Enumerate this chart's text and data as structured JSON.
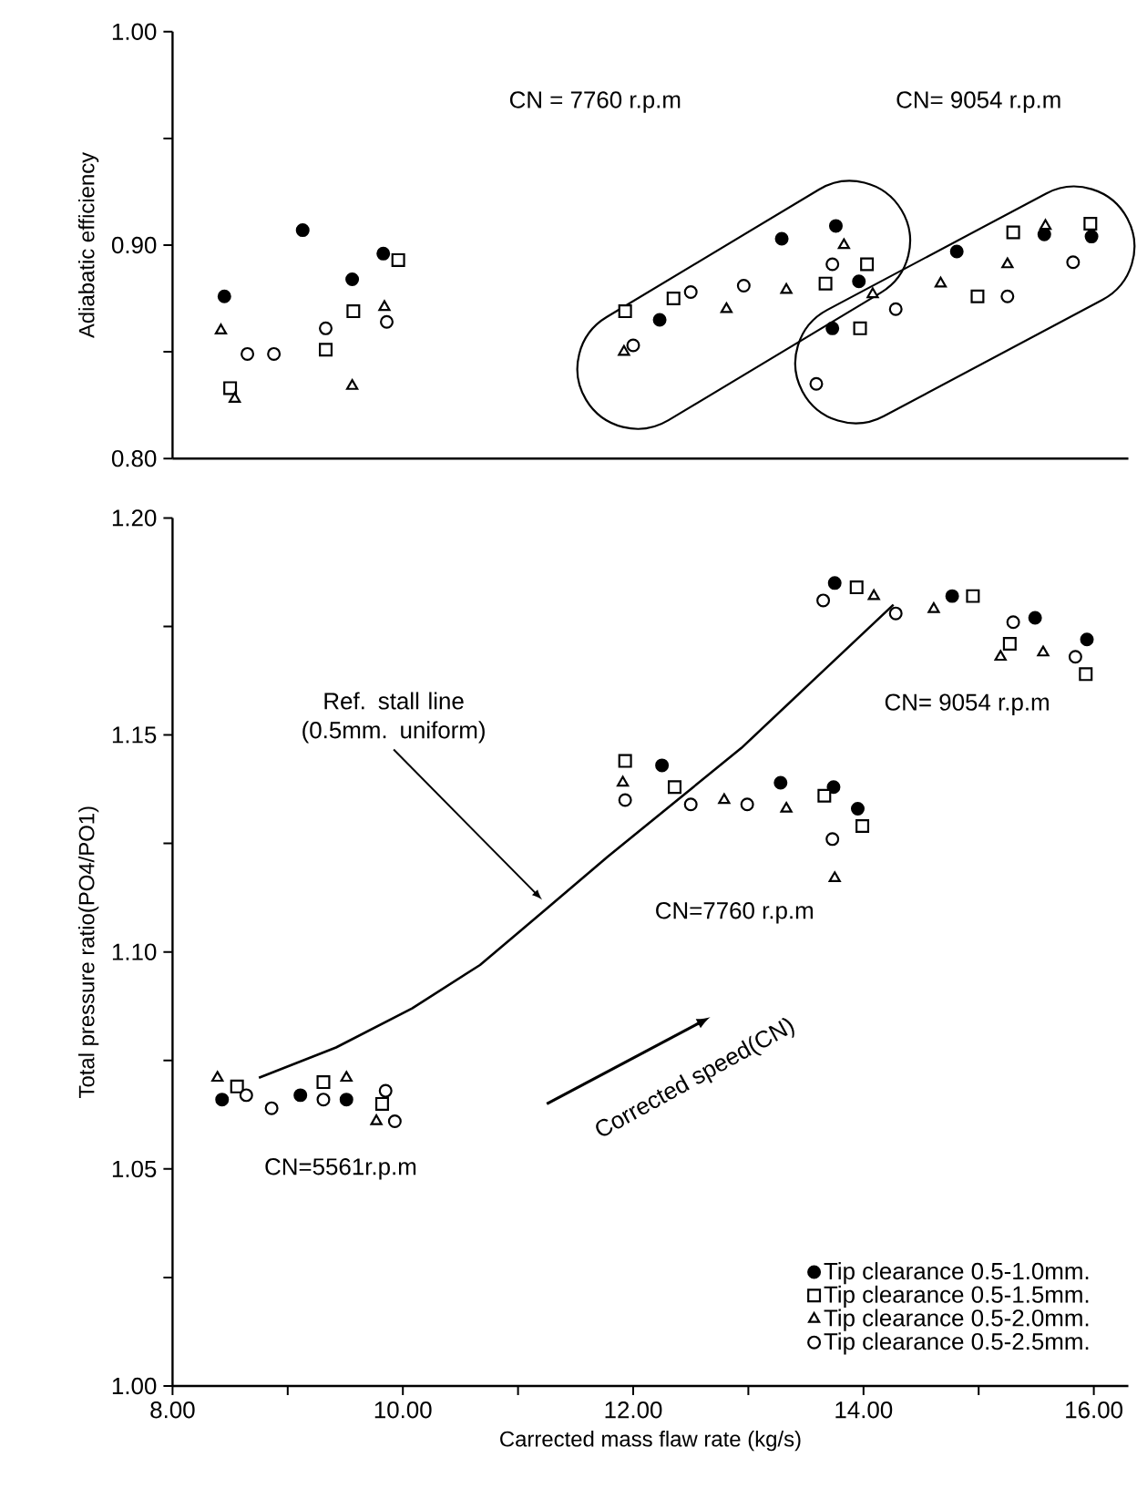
{
  "chart_data": [
    {
      "type": "scatter",
      "ylabel": "Adiabatic efficiency",
      "xlim": [
        8,
        16.3
      ],
      "ylim": [
        0.8,
        1.0
      ],
      "tick_labels": "y",
      "yticks": [
        {
          "value": 0.8,
          "label": "0.80"
        },
        {
          "value": 0.85,
          "label": null
        },
        {
          "value": 0.9,
          "label": "0.90"
        },
        {
          "value": 0.95,
          "label": null
        },
        {
          "value": 1.0,
          "label": "1.00"
        }
      ],
      "annotations": [
        "CN = 7760 r.p.m",
        "CN= 9054 r.p.m"
      ],
      "series": [
        {
          "color": "#000000",
          "marker": "circle",
          "x": [
            8.45,
            9.13,
            9.56,
            9.83,
            12.23,
            13.29,
            13.76,
            13.73,
            13.96,
            14.81,
            15.57,
            15.98
          ],
          "values": [
            0.876,
            0.907,
            0.884,
            0.896,
            0.865,
            0.903,
            0.909,
            0.861,
            0.883,
            0.897,
            0.905,
            0.904
          ]
        },
        {
          "color": "#000000",
          "marker": "square",
          "x": [
            8.5,
            9.33,
            9.57,
            9.96,
            11.93,
            12.35,
            13.67,
            14.03,
            13.97,
            15.3,
            14.99,
            15.97
          ],
          "values": [
            0.833,
            0.851,
            0.869,
            0.893,
            0.869,
            0.875,
            0.882,
            0.891,
            0.861,
            0.906,
            0.876,
            0.91
          ]
        },
        {
          "color": "#000000",
          "marker": "triangle",
          "x": [
            8.42,
            8.54,
            9.56,
            9.84,
            11.92,
            12.81,
            13.33,
            13.83,
            14.08,
            14.67,
            15.25,
            15.58
          ],
          "values": [
            0.86,
            0.828,
            0.834,
            0.871,
            0.85,
            0.87,
            0.879,
            0.9,
            0.877,
            0.882,
            0.891,
            0.909
          ]
        },
        {
          "color": "#000000",
          "marker": "circle",
          "x": [
            8.65,
            8.88,
            9.33,
            9.86,
            12.0,
            12.5,
            12.96,
            13.73,
            14.28,
            13.59,
            15.25,
            15.82
          ],
          "values": [
            0.849,
            0.849,
            0.861,
            0.864,
            0.853,
            0.878,
            0.881,
            0.891,
            0.87,
            0.835,
            0.876,
            0.892
          ]
        }
      ]
    },
    {
      "type": "scatter",
      "xlabel": "Carrected mass flaw rate (kg/s)",
      "ylabel": "Total pressure ratio(PO4/PO1)",
      "xlim": [
        8,
        16.3
      ],
      "ylim": [
        1.0,
        1.2
      ],
      "legend": "bottom right",
      "xticks": [
        {
          "value": 8,
          "label": "8.00"
        },
        {
          "value": 9,
          "label": null
        },
        {
          "value": 10,
          "label": "10.00"
        },
        {
          "value": 11,
          "label": null
        },
        {
          "value": 12,
          "label": "12.00"
        },
        {
          "value": 13,
          "label": null
        },
        {
          "value": 14,
          "label": "14.00"
        },
        {
          "value": 15,
          "label": null
        },
        {
          "value": 16,
          "label": "16.00"
        }
      ],
      "yticks": [
        {
          "value": 1.0,
          "label": "1.00"
        },
        {
          "value": 1.025,
          "label": null
        },
        {
          "value": 1.05,
          "label": "1.05"
        },
        {
          "value": 1.075,
          "label": null
        },
        {
          "value": 1.1,
          "label": "1.10"
        },
        {
          "value": 1.125,
          "label": null
        },
        {
          "value": 1.15,
          "label": "1.15"
        },
        {
          "value": 1.175,
          "label": null
        },
        {
          "value": 1.2,
          "label": "1.20"
        }
      ],
      "annotations": [
        "CN=5561r.p.m",
        "CN=7760 r.p.m",
        "CN= 9054 r.p.m",
        {
          "text": "Ref. stall line (0.5mm. uniform)",
          "x": 11.21,
          "y": 1.112
        },
        "Corrected speed(CN)"
      ],
      "series": [
        {
          "name": "Tip clearance  0.5-1.0mm.",
          "color": "#000000",
          "marker": "circle",
          "x": [
            8.43,
            9.11,
            9.51,
            9.79,
            12.25,
            13.28,
            13.74,
            13.95,
            13.75,
            14.77,
            15.49,
            15.94
          ],
          "values": [
            1.066,
            1.067,
            1.066,
            null,
            1.143,
            1.139,
            1.138,
            1.133,
            1.185,
            1.182,
            1.177,
            1.172
          ]
        },
        {
          "name": "Tip clearance  0.5-1.5mm.",
          "color": "#000000",
          "marker": "square",
          "x": [
            8.56,
            9.31,
            9.82,
            11.93,
            12.36,
            13.66,
            13.99,
            13.94,
            14.95,
            15.27,
            15.93
          ],
          "values": [
            1.069,
            1.07,
            1.065,
            1.144,
            1.138,
            1.136,
            1.129,
            1.184,
            1.182,
            1.171,
            1.164
          ]
        },
        {
          "name": "Tip clearance  0.5-2.0mm.",
          "color": "#000000",
          "marker": "triangle",
          "x": [
            8.39,
            9.51,
            9.77,
            11.91,
            12.79,
            13.33,
            13.75,
            14.09,
            14.61,
            15.19,
            15.56
          ],
          "values": [
            1.071,
            1.071,
            1.061,
            1.139,
            1.135,
            1.133,
            1.117,
            1.182,
            1.179,
            1.168,
            1.169
          ]
        },
        {
          "name": "Tip clearance  0.5-2.5mm.",
          "color": "#000000",
          "marker": "circle",
          "x": [
            8.64,
            8.86,
            9.31,
            9.85,
            9.93,
            11.93,
            12.5,
            12.99,
            13.73,
            13.65,
            14.28,
            15.3,
            15.84
          ],
          "values": [
            1.067,
            1.064,
            1.066,
            1.068,
            1.061,
            1.135,
            1.134,
            1.134,
            1.126,
            1.181,
            1.178,
            1.176,
            1.168
          ]
        },
        {
          "type": "line",
          "color": "#000000",
          "marker": "none",
          "x": [
            8.75,
            9.42,
            10.08,
            10.67,
            11.25,
            11.78,
            12.43,
            12.94,
            13.46,
            14.26
          ],
          "values": [
            1.071,
            1.078,
            1.087,
            1.097,
            1.11,
            1.122,
            1.136,
            1.147,
            1.16,
            1.18
          ]
        }
      ]
    }
  ]
}
